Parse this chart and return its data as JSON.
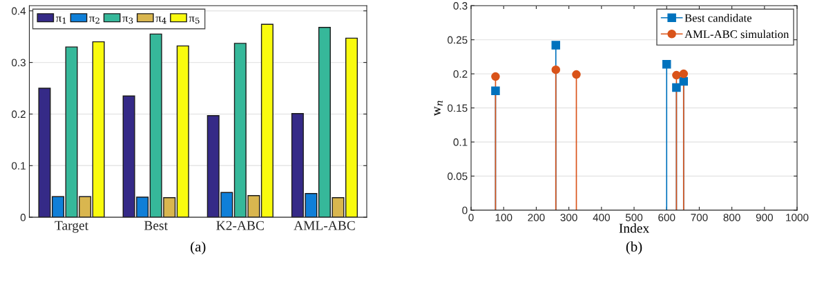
{
  "chart_data": [
    {
      "type": "bar",
      "categories": [
        "Target",
        "Best",
        "K2-ABC",
        "AML-ABC"
      ],
      "series": [
        {
          "name": "π$_{1}$",
          "color": "#352a87",
          "values": [
            0.25,
            0.235,
            0.197,
            0.201
          ]
        },
        {
          "name": "π$_{2}$",
          "color": "#0f7fd8",
          "values": [
            0.04,
            0.039,
            0.048,
            0.046
          ]
        },
        {
          "name": "π$_{3}$",
          "color": "#36b89a",
          "values": [
            0.33,
            0.355,
            0.337,
            0.368
          ]
        },
        {
          "name": "π$_{4}$",
          "color": "#d9b64f",
          "values": [
            0.04,
            0.038,
            0.042,
            0.038
          ]
        },
        {
          "name": "π$_{5}$",
          "color": "#f9fb0e",
          "values": [
            0.34,
            0.332,
            0.374,
            0.347
          ]
        }
      ],
      "ylim": [
        0,
        0.41
      ],
      "yticks": [
        0,
        0.1,
        0.2,
        0.3,
        0.4
      ],
      "grid": "y",
      "legend": "top left",
      "annotations": [
        "(a)"
      ]
    },
    {
      "type": "lollipop",
      "xlabel": "Index",
      "ylabel": "w$_{n}$",
      "series": [
        {
          "name": "Best candidate",
          "color": "#0072bd",
          "marker": "square",
          "x": [
            75,
            260,
            600,
            630,
            652
          ],
          "values": [
            0.175,
            0.242,
            0.214,
            0.18,
            0.189
          ]
        },
        {
          "name": "AML-ABC simulation",
          "color": "#d95319",
          "marker": "circle",
          "x": [
            75,
            260,
            323,
            630,
            652
          ],
          "values": [
            0.196,
            0.206,
            0.199,
            0.198,
            0.2
          ]
        }
      ],
      "xlim": [
        0,
        1000
      ],
      "xticks": [
        0,
        100,
        200,
        300,
        400,
        500,
        600,
        700,
        800,
        900,
        1000
      ],
      "ylim": [
        0,
        0.3
      ],
      "yticks": [
        0,
        0.05,
        0.1,
        0.15,
        0.2,
        0.25,
        0.3
      ],
      "grid": "y",
      "legend": "top right",
      "annotations": [
        "(b)"
      ]
    }
  ]
}
